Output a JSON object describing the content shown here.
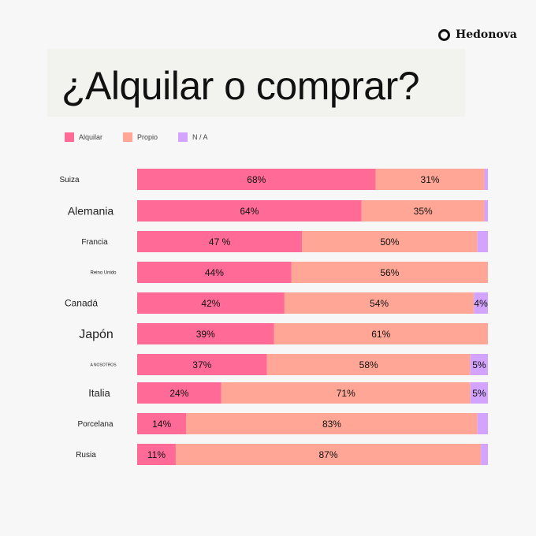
{
  "brand": {
    "name": "Hedonova"
  },
  "chart_data": {
    "type": "bar",
    "orientation": "horizontal",
    "stacked": true,
    "title": "¿Alquilar o comprar?",
    "categories": [
      "Suiza",
      "Alemania",
      "Francia",
      "Reino Unido",
      "Canadá",
      "Japón",
      "A NOSOTROS",
      "Italia",
      "Porcelana",
      "Rusia"
    ],
    "series": [
      {
        "name": "Alquilar",
        "color": "#ff6b96",
        "values": [
          68,
          64,
          47,
          44,
          42,
          39,
          37,
          24,
          14,
          11
        ],
        "labels": [
          "68%",
          "64%",
          "47 %",
          "44%",
          "42%",
          "39%",
          "37%",
          "24%",
          "14%",
          "11%"
        ]
      },
      {
        "name": "Propio",
        "color": "#ffa697",
        "values": [
          31,
          35,
          50,
          56,
          54,
          61,
          58,
          71,
          83,
          87
        ],
        "labels": [
          "31%",
          "35%",
          "50%",
          "56%",
          "54%",
          "61%",
          "58%",
          "71%",
          "83%",
          "87%"
        ]
      },
      {
        "name": "N / A",
        "color": "#d3a4ff",
        "values": [
          1,
          1,
          3,
          0,
          4,
          0,
          5,
          5,
          3,
          2
        ],
        "labels": [
          "",
          "",
          "",
          "",
          "4%",
          "",
          "5%",
          "5%",
          "",
          ""
        ]
      }
    ],
    "xlim": [
      0,
      100
    ],
    "legend_position": "top-left"
  }
}
